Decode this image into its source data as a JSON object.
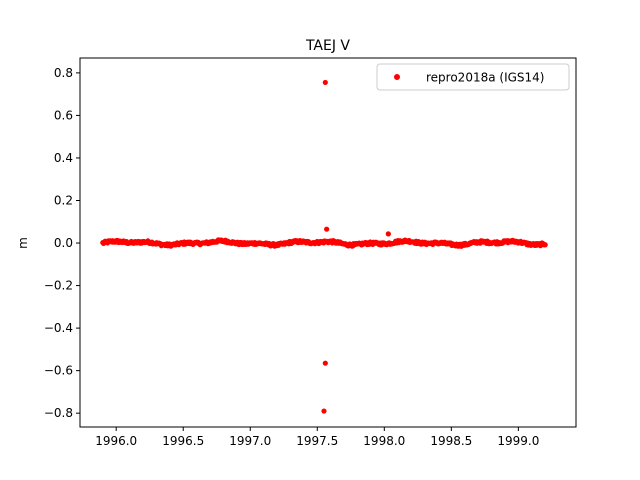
{
  "chart_data": {
    "type": "scatter",
    "title": "TAEJ V",
    "xlabel": "",
    "ylabel": "m",
    "xlim": [
      1995.73,
      1999.43
    ],
    "ylim": [
      -0.865,
      0.87
    ],
    "xticks": [
      1996.0,
      1996.5,
      1997.0,
      1997.5,
      1998.0,
      1998.5,
      1999.0
    ],
    "xtick_labels": [
      "1996.0",
      "1996.5",
      "1997.0",
      "1997.5",
      "1998.0",
      "1998.5",
      "1999.0"
    ],
    "yticks": [
      -0.8,
      -0.6,
      -0.4,
      -0.2,
      0.0,
      0.2,
      0.4,
      0.6,
      0.8
    ],
    "ytick_labels": [
      "−0.8",
      "−0.6",
      "−0.4",
      "−0.2",
      "0.0",
      "0.2",
      "0.4",
      "0.6",
      "0.8"
    ],
    "grid": false,
    "legend_position": "top-right",
    "series": [
      {
        "name": "repro2018a (IGS14)",
        "color": "#ff0000",
        "marker": "circle",
        "dense_band": {
          "x_start": 1995.9,
          "x_end": 1999.2,
          "y_center": 0.0,
          "spread": 0.012,
          "approx_points": 560
        },
        "outliers": [
          {
            "x": 1997.56,
            "y": 0.755
          },
          {
            "x": 1997.57,
            "y": 0.065
          },
          {
            "x": 1998.03,
            "y": 0.043
          },
          {
            "x": 1997.56,
            "y": -0.565
          },
          {
            "x": 1997.55,
            "y": -0.79
          }
        ]
      }
    ]
  }
}
